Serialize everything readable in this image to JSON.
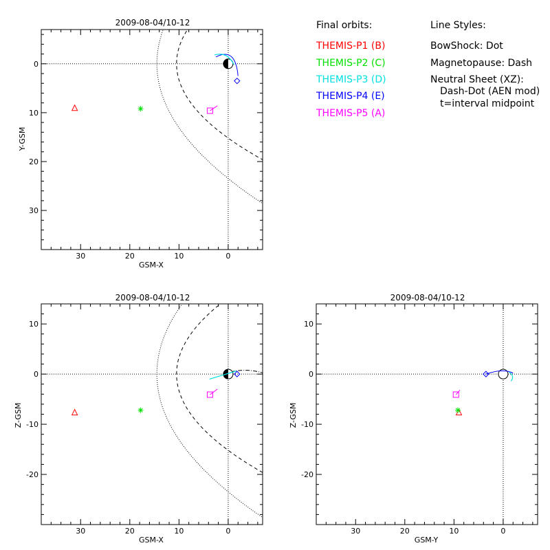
{
  "chart_data": [
    {
      "type": "scatter",
      "title": "2009-08-04/10-12",
      "xlabel": "GSM-X",
      "ylabel": "Y-GSM",
      "xlim": [
        38,
        -7
      ],
      "ylim": [
        -7,
        38
      ],
      "xticks": [
        30,
        20,
        10,
        0
      ],
      "yticks": [
        0,
        10,
        20,
        30
      ],
      "series": [
        {
          "name": "THEMIS-P1 (B)",
          "marker": "triangle",
          "x": 31.2,
          "y": 9.0
        },
        {
          "name": "THEMIS-P2 (C)",
          "marker": "asterisk",
          "x": 17.8,
          "y": 9.2
        },
        {
          "name": "THEMIS-P3 (D)",
          "marker": "none",
          "x": 0.0,
          "y": 0.0
        },
        {
          "name": "THEMIS-P4 (E)",
          "marker": "diamond",
          "x": -1.8,
          "y": 3.5
        },
        {
          "name": "THEMIS-P5 (A)",
          "marker": "square",
          "x": 3.7,
          "y": 9.6
        }
      ]
    },
    {
      "type": "scatter",
      "title": "2009-08-04/10-12",
      "xlabel": "GSM-X",
      "ylabel": "Z-GSM",
      "xlim": [
        38,
        -7
      ],
      "ylim": [
        -30,
        14
      ],
      "xticks": [
        30,
        20,
        10,
        0
      ],
      "yticks": [
        10,
        0,
        -10,
        -20
      ],
      "series": [
        {
          "name": "THEMIS-P1 (B)",
          "marker": "triangle",
          "x": 31.2,
          "y": -7.6
        },
        {
          "name": "THEMIS-P2 (C)",
          "marker": "asterisk",
          "x": 17.8,
          "y": -7.2
        },
        {
          "name": "THEMIS-P3 (D)",
          "marker": "none",
          "x": 0.0,
          "y": 0.0
        },
        {
          "name": "THEMIS-P4 (E)",
          "marker": "diamond",
          "x": -1.8,
          "y": 0.0
        },
        {
          "name": "THEMIS-P5 (A)",
          "marker": "square",
          "x": 3.7,
          "y": -4.1
        }
      ]
    },
    {
      "type": "scatter",
      "title": "2009-08-04/10-12",
      "xlabel": "GSM-Y",
      "ylabel": "Z-GSM",
      "xlim": [
        38,
        -7
      ],
      "ylim": [
        -30,
        14
      ],
      "xticks": [
        30,
        20,
        10,
        0
      ],
      "yticks": [
        10,
        0,
        -10,
        -20
      ],
      "series": [
        {
          "name": "THEMIS-P1 (B)",
          "marker": "triangle",
          "x": 9.0,
          "y": -7.6
        },
        {
          "name": "THEMIS-P2 (C)",
          "marker": "asterisk",
          "x": 9.2,
          "y": -7.2
        },
        {
          "name": "THEMIS-P3 (D)",
          "marker": "none",
          "x": 0.0,
          "y": 0.0
        },
        {
          "name": "THEMIS-P4 (E)",
          "marker": "diamond",
          "x": 3.5,
          "y": 0.0
        },
        {
          "name": "THEMIS-P5 (A)",
          "marker": "square",
          "x": 9.6,
          "y": -4.1
        }
      ]
    }
  ],
  "legend": {
    "orbits_heading": "Final orbits:",
    "orbits": [
      {
        "label": "THEMIS-P1 (B)",
        "color": "#ff0000"
      },
      {
        "label": "THEMIS-P2 (C)",
        "color": "#00e000"
      },
      {
        "label": "THEMIS-P3 (D)",
        "color": "#00e0e0"
      },
      {
        "label": "THEMIS-P4 (E)",
        "color": "#0000ff"
      },
      {
        "label": "THEMIS-P5 (A)",
        "color": "#ff00ff"
      }
    ],
    "styles_heading": "Line Styles:",
    "styles": [
      "BowShock: Dot",
      "Magnetopause: Dash",
      "Neutral Sheet (XZ):",
      "Dash-Dot (AEN mod)",
      "t=interval midpoint"
    ]
  }
}
